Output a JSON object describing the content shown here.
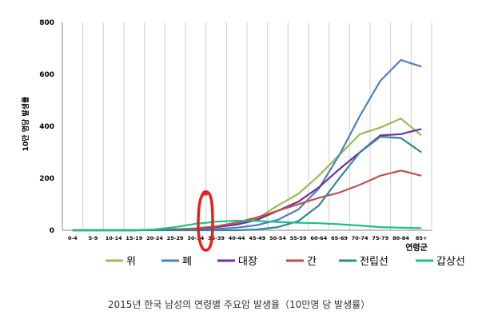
{
  "chart_data": {
    "type": "line",
    "title": "",
    "xlabel": "연령군",
    "ylabel": "10만 명당 발생률",
    "ylim": [
      0,
      800
    ],
    "yticks": [
      0,
      200,
      400,
      600,
      800
    ],
    "grid": "vertical",
    "legend": "bottom",
    "categories": [
      "0-4",
      "5-9",
      "10-14",
      "15-19",
      "20-24",
      "25-29",
      "30-34",
      "35-39",
      "40-44",
      "45-49",
      "50-54",
      "55-59",
      "60-64",
      "65-69",
      "70-74",
      "75-79",
      "80-84",
      "85+"
    ],
    "series": [
      {
        "name": "위",
        "color": "#9bbb59",
        "values": [
          0,
          0,
          0,
          0,
          2,
          4,
          7,
          15,
          25,
          45,
          95,
          140,
          210,
          290,
          370,
          395,
          430,
          365
        ]
      },
      {
        "name": "폐",
        "color": "#4f81bd",
        "values": [
          0,
          0,
          0,
          0,
          1,
          2,
          3,
          5,
          10,
          20,
          40,
          80,
          160,
          290,
          440,
          575,
          655,
          630
        ]
      },
      {
        "name": "대장",
        "color": "#7030a0",
        "values": [
          0,
          0,
          0,
          0,
          1,
          3,
          6,
          12,
          22,
          40,
          75,
          110,
          165,
          235,
          300,
          365,
          370,
          390
        ]
      },
      {
        "name": "간",
        "color": "#c0504d",
        "values": [
          0,
          0,
          0,
          0,
          1,
          3,
          7,
          15,
          30,
          50,
          75,
          100,
          125,
          145,
          175,
          210,
          230,
          210
        ]
      },
      {
        "name": "전립선",
        "color": "#31859c",
        "values": [
          0,
          0,
          0,
          0,
          0,
          0,
          0,
          0,
          0,
          3,
          12,
          35,
          95,
          200,
          300,
          360,
          355,
          300
        ]
      },
      {
        "name": "갑상선",
        "color": "#1dbf8a",
        "values": [
          0,
          0,
          0,
          0,
          3,
          12,
          25,
          33,
          37,
          36,
          32,
          29,
          27,
          23,
          18,
          12,
          10,
          8
        ]
      }
    ]
  },
  "annotation": {
    "type": "red-hand-drawn-circle",
    "target_category": "35-39"
  },
  "caption": "2015년 한국 남성의 연령별 주요암 발생율（10만명 당 발생률）"
}
